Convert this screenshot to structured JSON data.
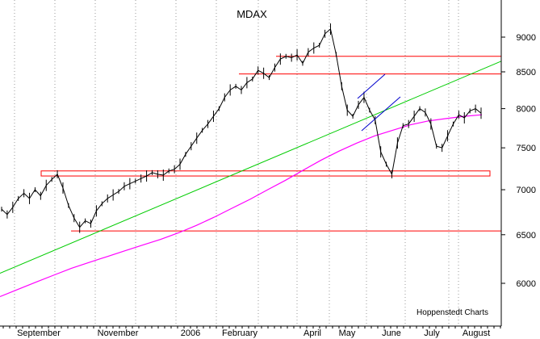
{
  "chart_data": {
    "type": "line",
    "title": "MDAX",
    "credit": "Hoppenstedt Charts",
    "y_scale": "log",
    "ylim": [
      5500,
      9600
    ],
    "grid": true,
    "y_ticks": [
      6000,
      6500,
      7000,
      7500,
      8000,
      8500,
      9000
    ],
    "y_tick_labels": [
      "6000",
      "6500",
      "7000",
      "7500",
      "8000",
      "8500",
      "9000"
    ],
    "x_tick_labels": [
      "September",
      "November",
      "2006",
      "February",
      "April",
      "May",
      "June",
      "July",
      "August"
    ],
    "colors": {
      "price": "#000000",
      "moving_average": "#ff00ff",
      "uptrend": "#00cc00",
      "levels": "#ff0000",
      "pattern": "#0000cc",
      "grid": "#999999"
    },
    "series": [
      {
        "values": [
          6780,
          6720,
          6800,
          6900,
          6960,
          6900,
          7000,
          6930,
          7050,
          7120,
          7180,
          7020,
          6820,
          6680,
          6580,
          6650,
          6620,
          6760,
          6840,
          6900,
          6940,
          6980,
          7040,
          7070,
          7100,
          7130,
          7160,
          7200,
          7180,
          7170,
          7220,
          7240,
          7300,
          7420,
          7520,
          7620,
          7720,
          7800,
          7900,
          8000,
          8150,
          8250,
          8300,
          8250,
          8350,
          8400,
          8520,
          8480,
          8420,
          8560,
          8680,
          8720,
          8700,
          8740,
          8620,
          8780,
          8840,
          8880,
          9050,
          9120,
          8750,
          8300,
          7980,
          7900,
          8050,
          8150,
          7980,
          7850,
          7450,
          7300,
          7180,
          7560,
          7780,
          7800,
          7900,
          8000,
          7950,
          7800,
          7520,
          7500,
          7650,
          7800,
          7920,
          7880,
          7970,
          8000,
          7940
        ]
      },
      {
        "values": [
          5870,
          5940,
          6010,
          6080,
          6150,
          6210,
          6270,
          6330,
          6390,
          6450,
          6520,
          6600,
          6690,
          6790,
          6890,
          7000,
          7110,
          7230,
          7350,
          7460,
          7560,
          7650,
          7720,
          7790,
          7840,
          7870,
          7900,
          7920
        ]
      }
    ],
    "horizontal_levels": [
      8720,
      8470,
      6540
    ],
    "support_zone": [
      7160,
      7220
    ],
    "trendline": {
      "start": 6100,
      "end": 8650
    }
  }
}
